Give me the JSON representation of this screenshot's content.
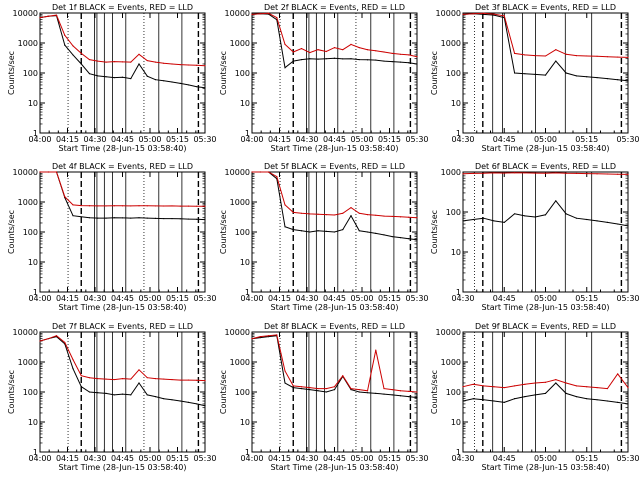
{
  "colors": {
    "events": "#000000",
    "lld": "#cc0000",
    "background": "#ffffff"
  },
  "chart_data": [
    {
      "type": "line",
      "title": "Det 1f BLACK = Events, RED = LLD",
      "xlabel": "Start Time (28-Jun-15 03:58:40)",
      "ylabel": "Counts/sec",
      "xticks": [
        "04:00",
        "04:15",
        "04:30",
        "04:45",
        "05:00",
        "05:15",
        "05:30"
      ],
      "yticks": [
        "1",
        "10",
        "100",
        "1000",
        "10000"
      ],
      "ylim": [
        1,
        10000
      ],
      "yscale": "log",
      "series": [
        {
          "name": "Events",
          "values": [
            7000,
            7800,
            8200,
            850,
            400,
            200,
            95,
            80,
            75,
            70,
            72,
            65,
            200,
            78,
            60,
            55,
            50,
            45,
            40,
            35,
            32
          ]
        },
        {
          "name": "LLD",
          "values": [
            7000,
            7800,
            8500,
            1800,
            800,
            450,
            280,
            250,
            230,
            240,
            235,
            230,
            420,
            260,
            230,
            210,
            200,
            190,
            185,
            180,
            175
          ]
        }
      ]
    },
    {
      "type": "line",
      "title": "Det 2f BLACK = Events, RED = LLD",
      "xlabel": "Start Time (28-Jun-15 03:58:40)",
      "ylabel": "Counts/sec",
      "xticks": [
        "04:00",
        "04:15",
        "04:30",
        "04:45",
        "05:00",
        "05:15",
        "05:30"
      ],
      "yticks": [
        "1",
        "10",
        "100",
        "1000",
        "10000"
      ],
      "ylim": [
        1,
        10000
      ],
      "yscale": "log",
      "series": [
        {
          "name": "Events",
          "values": [
            9000,
            9500,
            9200,
            6000,
            150,
            250,
            280,
            300,
            290,
            300,
            310,
            295,
            300,
            280,
            275,
            270,
            250,
            240,
            230,
            220,
            200
          ]
        },
        {
          "name": "LLD",
          "values": [
            9000,
            9500,
            9800,
            7000,
            900,
            500,
            650,
            480,
            600,
            520,
            700,
            600,
            900,
            700,
            600,
            550,
            500,
            450,
            420,
            400,
            350
          ]
        }
      ]
    },
    {
      "type": "line",
      "title": "Det 3f BLACK = Events, RED = LLD",
      "xlabel": "Start Time (28-Jun-15 03:58:40)",
      "ylabel": "Counts/sec",
      "xticks": [
        "04:30",
        "04:45",
        "05:00",
        "05:15",
        "05:30"
      ],
      "yticks": [
        "1",
        "10",
        "100",
        "1000",
        "10000"
      ],
      "ylim": [
        1,
        10000
      ],
      "yscale": "log",
      "series": [
        {
          "name": "Events",
          "values": [
            9000,
            9500,
            9000,
            8500,
            7000,
            100,
            95,
            90,
            85,
            250,
            100,
            80,
            75,
            70,
            65,
            60,
            55
          ]
        },
        {
          "name": "LLD",
          "values": [
            9000,
            9500,
            9800,
            9200,
            8000,
            450,
            400,
            380,
            370,
            600,
            420,
            380,
            370,
            360,
            350,
            340,
            330
          ]
        }
      ]
    },
    {
      "type": "line",
      "title": "Det 4f BLACK = Events, RED = LLD",
      "xlabel": "Start Time (28-Jun-15 03:58:40)",
      "ylabel": "Counts/sec",
      "xticks": [
        "04:00",
        "04:15",
        "04:30",
        "04:45",
        "05:00",
        "05:15",
        "05:30"
      ],
      "yticks": [
        "1",
        "10",
        "100",
        "1000",
        "10000"
      ],
      "ylim": [
        1,
        10000
      ],
      "yscale": "log",
      "series": [
        {
          "name": "Events",
          "values": [
            10000,
            10000,
            10000,
            1400,
            350,
            320,
            300,
            290,
            290,
            300,
            295,
            290,
            300,
            290,
            285,
            280,
            280,
            275,
            270,
            265,
            260
          ]
        },
        {
          "name": "LLD",
          "values": [
            10000,
            10000,
            10000,
            1500,
            800,
            760,
            750,
            740,
            740,
            750,
            745,
            740,
            750,
            745,
            740,
            735,
            740,
            730,
            730,
            725,
            720
          ]
        }
      ]
    },
    {
      "type": "line",
      "title": "Det 5f BLACK = Events, RED = LLD",
      "xlabel": "Start Time (28-Jun-15 03:58:40)",
      "ylabel": "Counts/sec",
      "xticks": [
        "04:00",
        "04:15",
        "04:30",
        "04:45",
        "05:00",
        "05:15",
        "05:30"
      ],
      "yticks": [
        "1",
        "10",
        "100",
        "1000",
        "10000"
      ],
      "ylim": [
        1,
        10000
      ],
      "yscale": "log",
      "series": [
        {
          "name": "Events",
          "values": [
            10000,
            10000,
            10000,
            6000,
            150,
            120,
            110,
            100,
            110,
            105,
            100,
            120,
            350,
            110,
            100,
            90,
            80,
            70,
            65,
            60,
            55
          ]
        },
        {
          "name": "LLD",
          "values": [
            10000,
            10000,
            10000,
            7000,
            800,
            450,
            420,
            400,
            390,
            380,
            370,
            420,
            650,
            420,
            380,
            360,
            340,
            330,
            320,
            310,
            300
          ]
        }
      ]
    },
    {
      "type": "line",
      "title": "Det 6f BLACK = Events, RED = LLD",
      "xlabel": "Start Time (28-Jun-15 03:58:40)",
      "ylabel": "Counts/sec",
      "xticks": [
        "04:30",
        "04:45",
        "05:00",
        "05:15",
        "05:30"
      ],
      "yticks": [
        "1",
        "10",
        "100",
        "1000",
        "10000"
      ],
      "ylim": [
        1,
        1000
      ],
      "yscale": "log",
      "series": [
        {
          "name": "Events",
          "values": [
            60,
            65,
            70,
            60,
            55,
            90,
            80,
            75,
            85,
            190,
            90,
            70,
            65,
            60,
            55,
            50,
            45
          ]
        },
        {
          "name": "LLD",
          "values": [
            900,
            920,
            930,
            950,
            940,
            960,
            950,
            940,
            930,
            950,
            930,
            920,
            910,
            900,
            890,
            880,
            870
          ]
        }
      ]
    },
    {
      "type": "line",
      "title": "Det 7f BLACK = Events, RED = LLD",
      "xlabel": "Start Time (28-Jun-15 03:58:40)",
      "ylabel": "Counts/sec",
      "xticks": [
        "04:00",
        "04:15",
        "04:30",
        "04:45",
        "05:00",
        "05:15",
        "05:30"
      ],
      "yticks": [
        "1",
        "10",
        "100",
        "1000",
        "10000"
      ],
      "ylim": [
        1,
        10000
      ],
      "yscale": "log",
      "series": [
        {
          "name": "Events",
          "values": [
            5000,
            6000,
            7000,
            4000,
            600,
            150,
            100,
            95,
            90,
            80,
            85,
            80,
            200,
            80,
            70,
            60,
            55,
            50,
            45,
            40,
            35
          ]
        },
        {
          "name": "LLD",
          "values": [
            5000,
            6000,
            7500,
            4500,
            1200,
            350,
            300,
            280,
            270,
            260,
            280,
            270,
            550,
            300,
            280,
            270,
            260,
            250,
            250,
            245,
            240
          ]
        }
      ]
    },
    {
      "type": "line",
      "title": "Det 8f BLACK = Events, RED = LLD",
      "xlabel": "Start Time (28-Jun-15 03:58:40)",
      "ylabel": "Counts/sec",
      "xticks": [
        "04:00",
        "04:15",
        "04:30",
        "04:45",
        "05:00",
        "05:15",
        "05:30"
      ],
      "yticks": [
        "1",
        "10",
        "100",
        "1000",
        "10000"
      ],
      "ylim": [
        1,
        10000
      ],
      "yscale": "log",
      "series": [
        {
          "name": "Events",
          "values": [
            6000,
            6500,
            7000,
            7500,
            200,
            140,
            130,
            120,
            110,
            100,
            120,
            330,
            120,
            100,
            95,
            90,
            85,
            80,
            75,
            70,
            65
          ]
        },
        {
          "name": "LLD",
          "values": [
            6000,
            7000,
            7500,
            8000,
            500,
            160,
            150,
            140,
            130,
            130,
            150,
            350,
            130,
            120,
            110,
            2500,
            130,
            120,
            110,
            105,
            100
          ]
        }
      ]
    },
    {
      "type": "line",
      "title": "Det 9f BLACK = Events, RED = LLD",
      "xlabel": "Start Time (28-Jun-15 03:58:40)",
      "ylabel": "Counts/sec",
      "xticks": [
        "04:30",
        "04:45",
        "05:00",
        "05:15",
        "05:30"
      ],
      "yticks": [
        "1",
        "10",
        "100",
        "1000",
        "10000"
      ],
      "ylim": [
        1,
        10000
      ],
      "yscale": "log",
      "series": [
        {
          "name": "Events",
          "values": [
            50,
            60,
            55,
            50,
            45,
            60,
            70,
            80,
            90,
            200,
            90,
            70,
            60,
            55,
            50,
            45,
            40
          ]
        },
        {
          "name": "LLD",
          "values": [
            150,
            180,
            160,
            150,
            140,
            160,
            180,
            200,
            210,
            260,
            200,
            160,
            150,
            140,
            130,
            400,
            140
          ]
        }
      ]
    }
  ]
}
